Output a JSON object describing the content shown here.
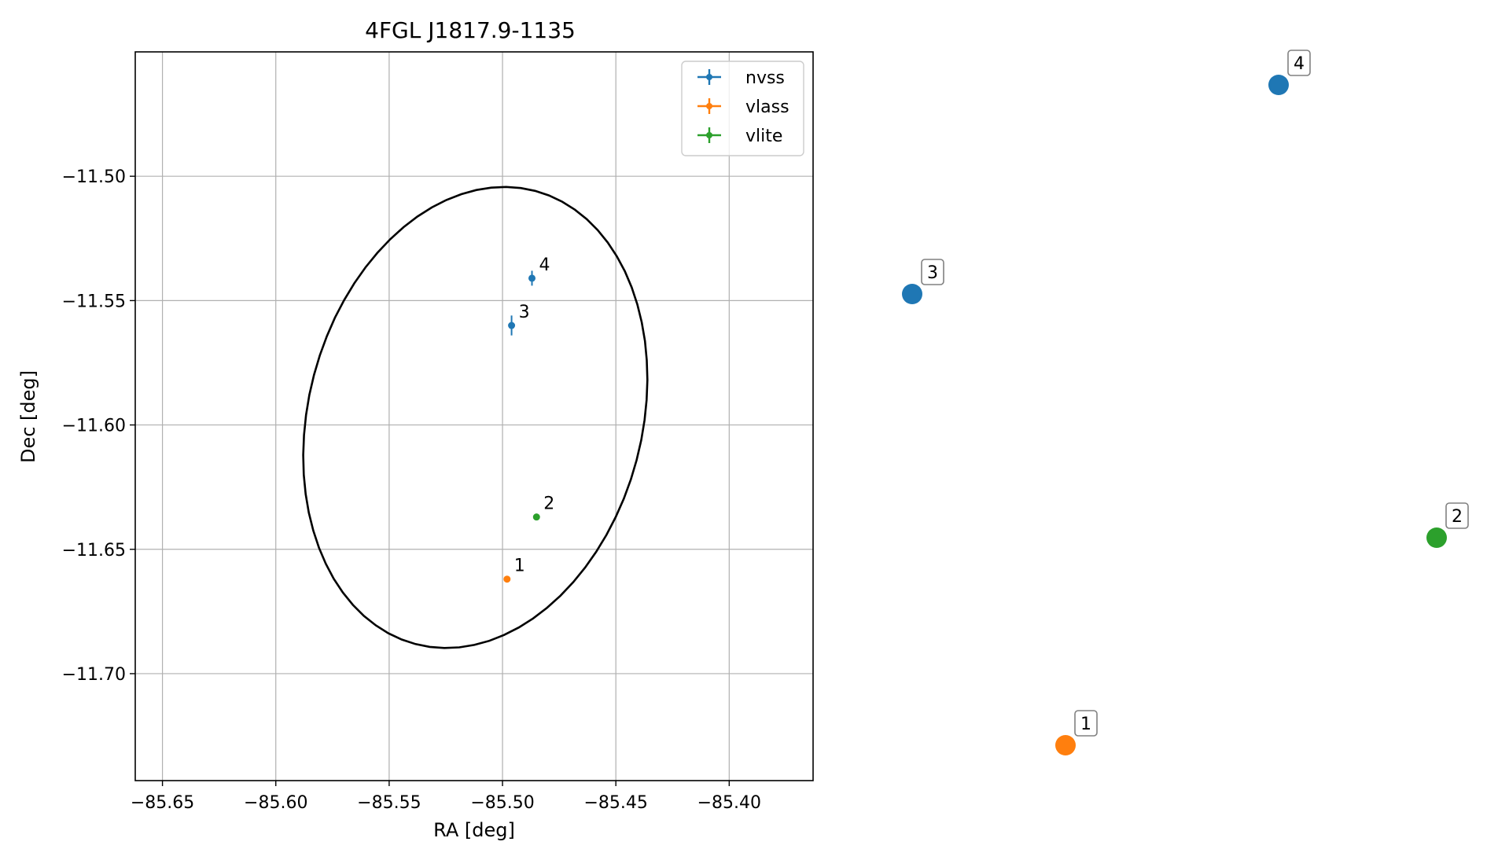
{
  "chart_data": [
    {
      "type": "scatter",
      "title": "4FGL J1817.9-1135",
      "xlabel": "RA [deg]",
      "ylabel": "Dec [deg]",
      "xlim": [
        -85.662,
        -85.363
      ],
      "ylim": [
        -11.743,
        -11.45
      ],
      "xticks": [
        -85.65,
        -85.6,
        -85.55,
        -85.5,
        -85.45,
        -85.4
      ],
      "xtick_labels": [
        "−85.65",
        "−85.60",
        "−85.55",
        "−85.50",
        "−85.45",
        "−85.40"
      ],
      "yticks": [
        -11.5,
        -11.55,
        -11.6,
        -11.65,
        -11.7
      ],
      "ytick_labels": [
        "−11.50",
        "−11.55",
        "−11.60",
        "−11.65",
        "−11.70"
      ],
      "grid": true,
      "legend_position": "top-right",
      "ellipse": {
        "center": [
          -85.512,
          -11.597
        ],
        "semi_axis_a": 0.073,
        "semi_axis_b": 0.095,
        "tilt_deg": 20,
        "color": "#000000"
      },
      "series": [
        {
          "name": "nvss",
          "color": "#1f77b4",
          "points": [
            {
              "label": "3",
              "x": -85.496,
              "y": -11.56,
              "yerr": 0.004
            },
            {
              "label": "4",
              "x": -85.487,
              "y": -11.541,
              "yerr": 0.003
            }
          ]
        },
        {
          "name": "vlass",
          "color": "#ff7f0e",
          "points": [
            {
              "label": "1",
              "x": -85.498,
              "y": -11.662,
              "yerr": 0.0
            }
          ]
        },
        {
          "name": "vlite",
          "color": "#2ca02c",
          "points": [
            {
              "label": "2",
              "x": -85.485,
              "y": -11.637,
              "yerr": 0.0
            }
          ]
        }
      ]
    },
    {
      "type": "scatter",
      "points": [
        {
          "label": "1",
          "color": "#ff7f0e"
        },
        {
          "label": "2",
          "color": "#2ca02c"
        },
        {
          "label": "3",
          "color": "#1f77b4"
        },
        {
          "label": "4",
          "color": "#1f77b4"
        }
      ]
    }
  ]
}
